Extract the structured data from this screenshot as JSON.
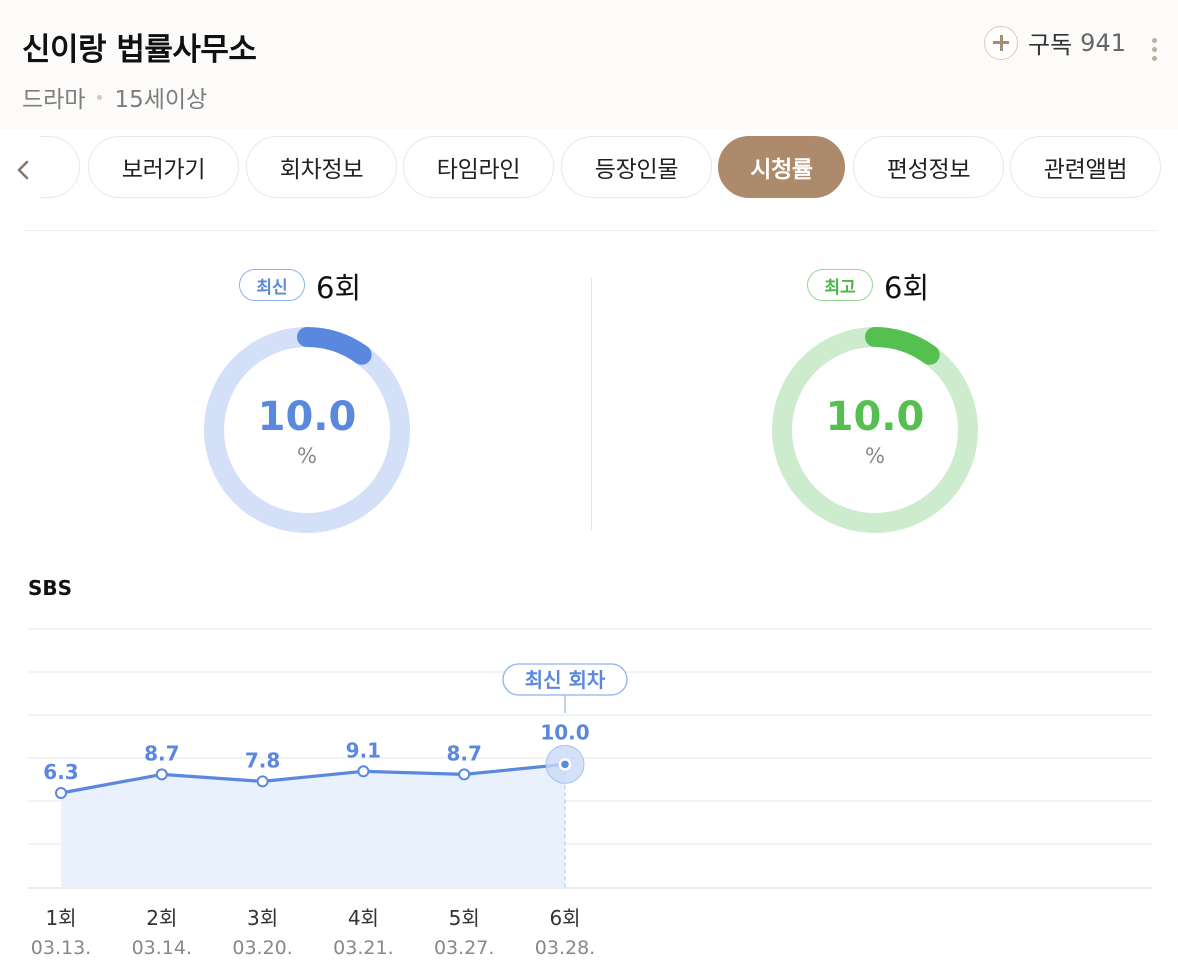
{
  "header": {
    "title": "신이랑 법률사무소",
    "genre": "드라마",
    "rating": "15세이상",
    "subscribe_label": "구독",
    "subscribe_count": "941"
  },
  "tabs": [
    {
      "label": "보러가기"
    },
    {
      "label": "회차정보"
    },
    {
      "label": "타임라인"
    },
    {
      "label": "등장인물"
    },
    {
      "label": "시청률",
      "active": true
    },
    {
      "label": "편성정보"
    },
    {
      "label": "관련앨범"
    }
  ],
  "stats": {
    "latest": {
      "badge": "최신",
      "episode": "6회",
      "value": "10.0",
      "unit": "%",
      "color": "#5b88df",
      "track_color": "#d4e0f8"
    },
    "best": {
      "badge": "최고",
      "episode": "6회",
      "value": "10.0",
      "unit": "%",
      "color": "#55bf4f",
      "track_color": "#cdeccd"
    }
  },
  "chart_data": {
    "type": "line",
    "title": "SBS",
    "x": [
      "1회",
      "2회",
      "3회",
      "4회",
      "5회",
      "6회"
    ],
    "dates": [
      "03.13.",
      "03.14.",
      "03.20.",
      "03.21.",
      "03.27.",
      "03.28."
    ],
    "series": [
      {
        "values": [
          6.3,
          8.7,
          7.8,
          9.1,
          8.7,
          10.0
        ]
      }
    ],
    "highlight_label": "최신 회차",
    "highlight_index": 5,
    "color": "#5b88df",
    "fill_color": "#e9f1fd",
    "grid": true
  }
}
